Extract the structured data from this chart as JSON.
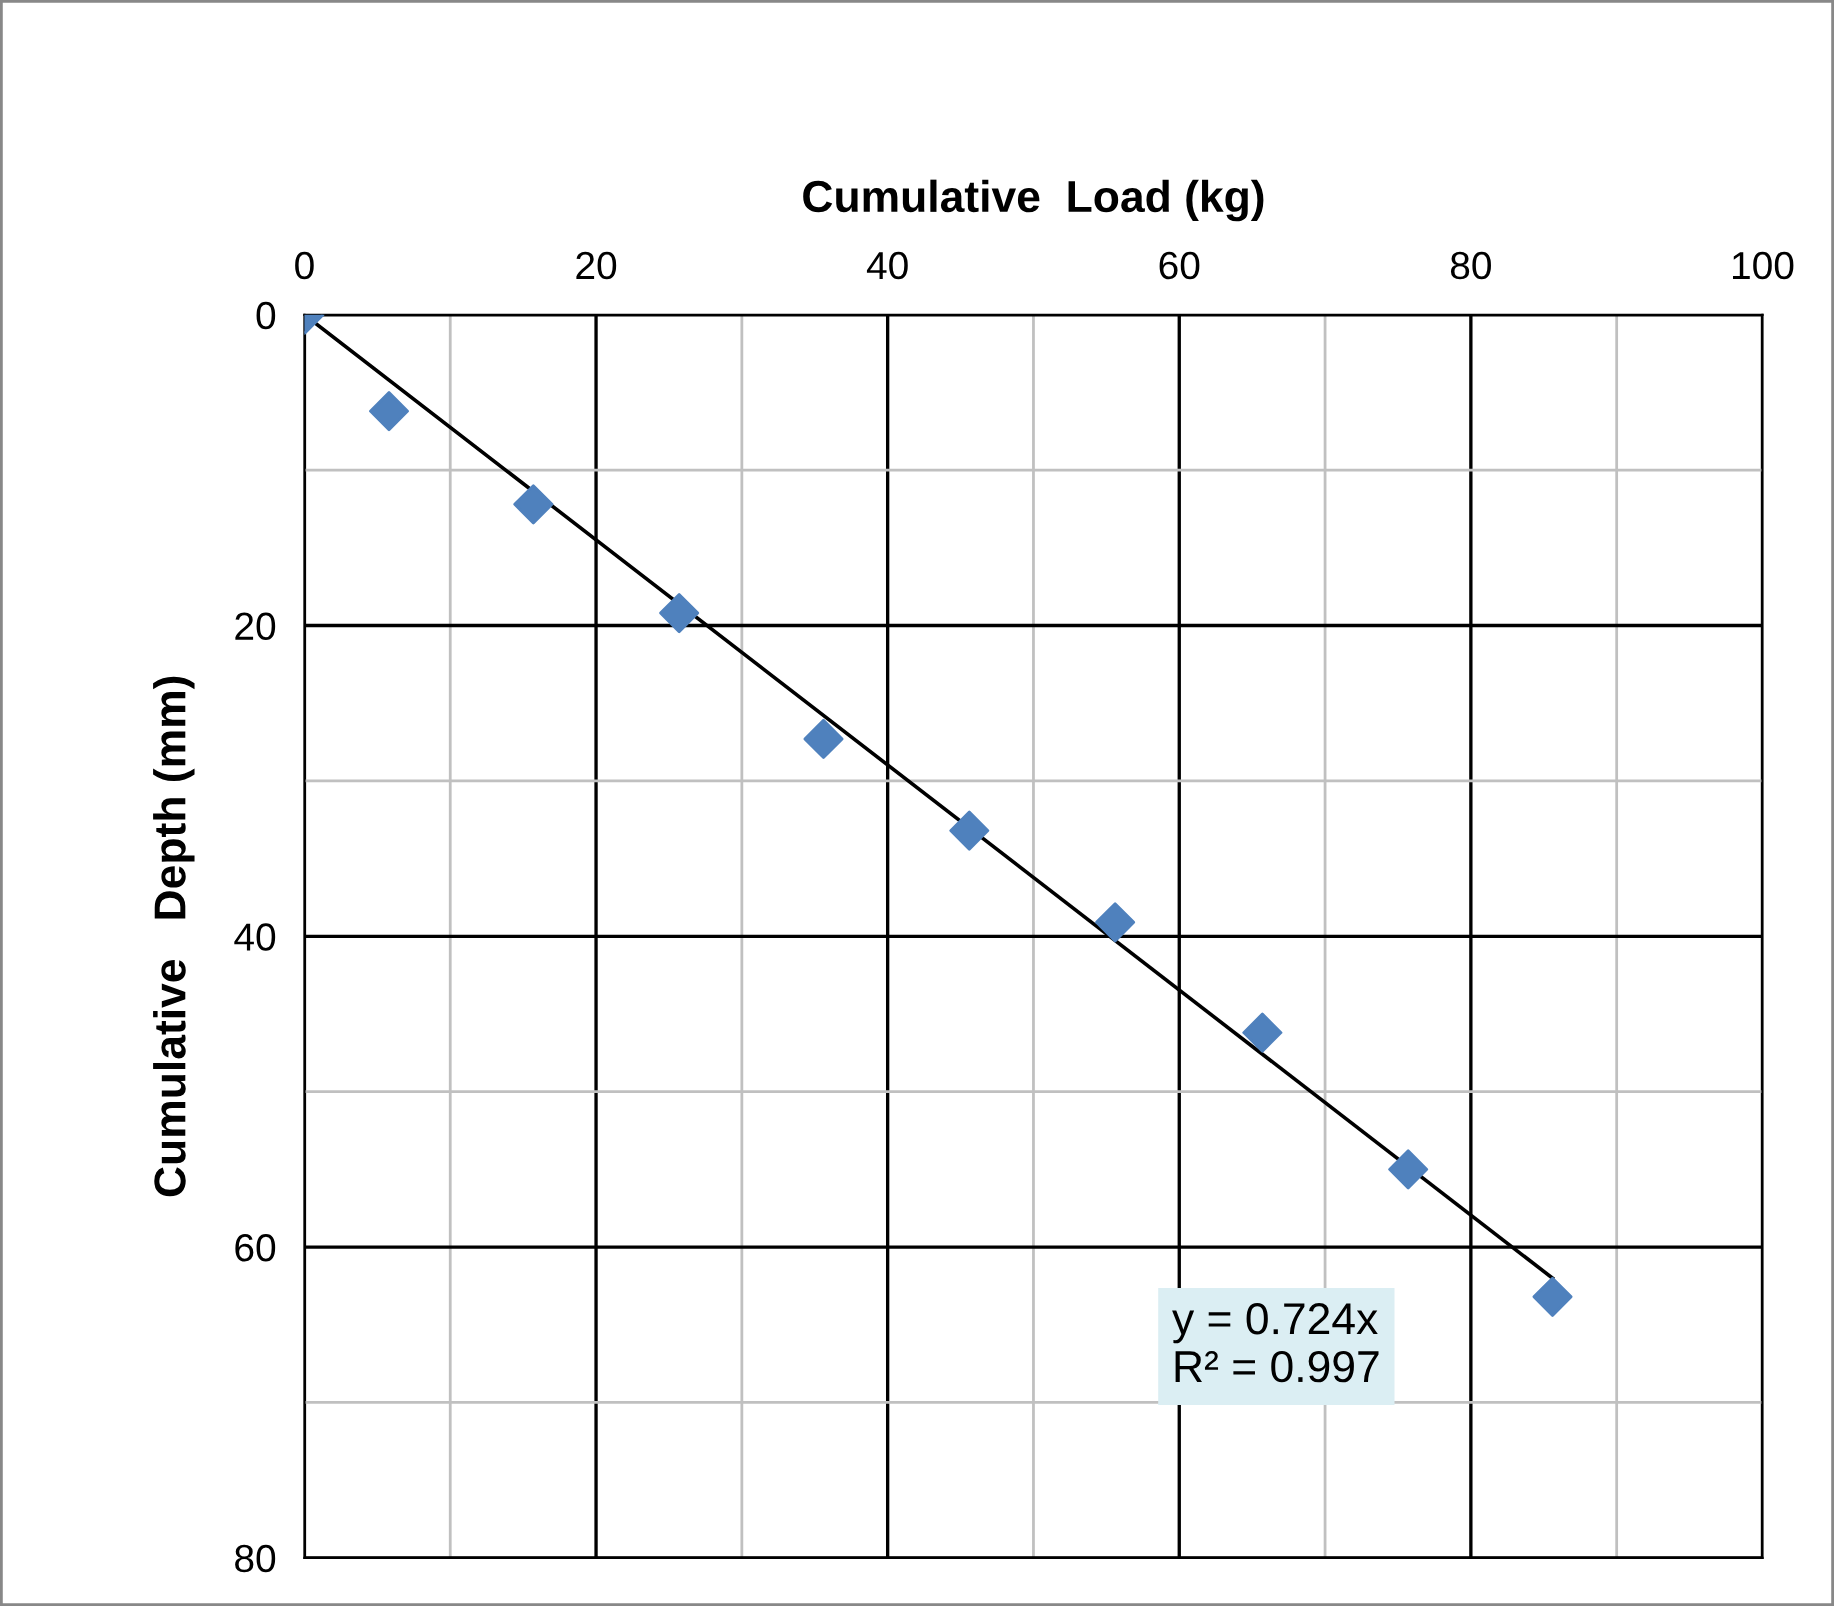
{
  "chart_data": {
    "type": "scatter",
    "xlabel": "Cumulative  Load (kg)",
    "ylabel": "Cumulative   Depth (mm)",
    "series": [
      {
        "color": "#4f81bd",
        "marker": "diamond",
        "x": [
          0,
          5.8,
          15.7,
          25.7,
          35.6,
          45.6,
          55.6,
          65.7,
          75.7,
          85.6
        ],
        "values": [
          0,
          6.2,
          12.2,
          19.2,
          27.3,
          33.2,
          39.1,
          46.2,
          55,
          63.2
        ]
      },
      {
        "type": "line",
        "color": "#000000",
        "marker": "none",
        "line_style": "solid",
        "x": [
          0,
          85.6
        ],
        "values": [
          0,
          62
        ]
      }
    ],
    "xlim": [
      0,
      100
    ],
    "ylim": [
      80,
      0
    ],
    "xticks": [
      0,
      {
        "value": 10,
        "label": null
      },
      20,
      {
        "value": 30,
        "label": null
      },
      40,
      {
        "value": 50,
        "label": null
      },
      60,
      {
        "value": 70,
        "label": null
      },
      80,
      {
        "value": 90,
        "label": null
      },
      100
    ],
    "yticks": [
      0,
      {
        "value": 10,
        "label": null
      },
      20,
      {
        "value": 30,
        "label": null
      },
      40,
      {
        "value": 50,
        "label": null
      },
      60,
      {
        "value": 70,
        "label": null
      },
      80
    ],
    "grid": true,
    "legend": false,
    "annotations": [
      "y = 0.724x\nR² = 0.997"
    ]
  }
}
